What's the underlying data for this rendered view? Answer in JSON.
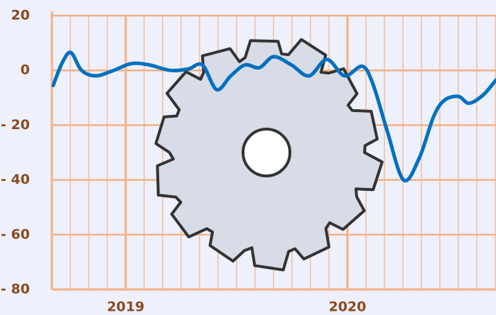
{
  "chart_data": {
    "type": "line",
    "x": [
      2018.673,
      2018.715,
      2018.753,
      2018.801,
      2018.865,
      2018.946,
      2019.026,
      2019.106,
      2019.202,
      2019.282,
      2019.346,
      2019.41,
      2019.474,
      2019.538,
      2019.603,
      2019.667,
      2019.747,
      2019.827,
      2019.907,
      2019.987,
      2020.067,
      2020.115,
      2020.179,
      2020.253,
      2020.324,
      2020.388,
      2020.436,
      2020.5,
      2020.548,
      2020.612,
      2020.67
    ],
    "series": [
      {
        "color": "#0070c0",
        "values": [
          -5.5,
          3,
          6.5,
          0,
          -2,
          0,
          2.5,
          2,
          0,
          0.5,
          2,
          -7,
          -2,
          2,
          1,
          5,
          2,
          -2,
          4,
          -2,
          1.5,
          -5,
          -22,
          -40,
          -32,
          -17,
          -11,
          -9.5,
          -12,
          -9,
          -3.5
        ]
      }
    ],
    "xlim": [
      2018.667,
      2020.67
    ],
    "xticks": [
      2019,
      2020
    ],
    "ylim": [
      -80,
      20
    ],
    "yticks": [
      {
        "value": -80,
        "label": "- 80"
      },
      {
        "value": -60,
        "label": "- 60"
      },
      {
        "value": -40,
        "label": "- 40"
      },
      {
        "value": -20,
        "label": "- 20"
      },
      0,
      20
    ],
    "grid": true
  }
}
